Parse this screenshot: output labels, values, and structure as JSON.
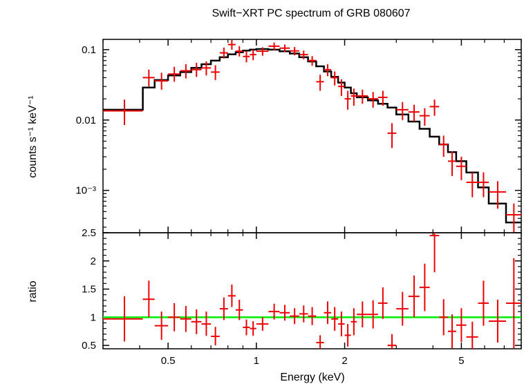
{
  "title": "Swift−XRT PC spectrum of GRB 080607",
  "colors": {
    "data": "#ee0000",
    "model": "#000000",
    "unity": "#00ee00",
    "axes": "#000000"
  },
  "chart_data": [
    {
      "type": "scatter",
      "name": "spectrum",
      "xscale": "log",
      "yscale": "log",
      "xlim": [
        0.3,
        8.0
      ],
      "ylim": [
        0.00025,
        0.14
      ],
      "ylabel": "counts s⁻¹ keV⁻¹",
      "yticks": [
        {
          "value": 0.1,
          "label": "0.1"
        },
        {
          "value": 0.01,
          "label": "0.01"
        },
        {
          "value": 0.001,
          "label": "10⁻³"
        }
      ],
      "model": {
        "x": [
          0.3,
          0.41,
          0.41,
          0.45,
          0.45,
          0.5,
          0.5,
          0.55,
          0.55,
          0.6,
          0.6,
          0.65,
          0.65,
          0.7,
          0.7,
          0.75,
          0.75,
          0.8,
          0.8,
          0.85,
          0.85,
          0.9,
          0.9,
          0.95,
          0.95,
          1.0,
          1.0,
          1.1,
          1.1,
          1.2,
          1.2,
          1.3,
          1.3,
          1.4,
          1.4,
          1.5,
          1.5,
          1.6,
          1.6,
          1.7,
          1.7,
          1.8,
          1.8,
          1.9,
          1.9,
          2.0,
          2.0,
          2.1,
          2.1,
          2.2,
          2.2,
          2.4,
          2.4,
          2.6,
          2.6,
          2.8,
          2.8,
          3.0,
          3.0,
          3.3,
          3.3,
          3.6,
          3.6,
          3.9,
          3.9,
          4.2,
          4.2,
          4.5,
          4.5,
          4.8,
          4.8,
          5.2,
          5.2,
          5.7,
          5.7,
          6.2,
          6.2,
          7.1,
          7.1,
          8.0
        ],
        "y": [
          0.014,
          0.014,
          0.029,
          0.029,
          0.037,
          0.037,
          0.043,
          0.043,
          0.048,
          0.048,
          0.055,
          0.055,
          0.062,
          0.062,
          0.07,
          0.07,
          0.078,
          0.078,
          0.086,
          0.086,
          0.092,
          0.092,
          0.097,
          0.097,
          0.1,
          0.1,
          0.102,
          0.102,
          0.1,
          0.1,
          0.095,
          0.095,
          0.088,
          0.088,
          0.078,
          0.078,
          0.068,
          0.068,
          0.058,
          0.058,
          0.049,
          0.049,
          0.041,
          0.041,
          0.034,
          0.034,
          0.029,
          0.029,
          0.024,
          0.024,
          0.021,
          0.021,
          0.019,
          0.019,
          0.017,
          0.017,
          0.015,
          0.015,
          0.012,
          0.012,
          0.0095,
          0.0095,
          0.0075,
          0.0075,
          0.0058,
          0.0058,
          0.0045,
          0.0045,
          0.0035,
          0.0035,
          0.0026,
          0.0026,
          0.0018,
          0.0018,
          0.0011,
          0.0011,
          0.00065,
          0.00065,
          0.00035,
          0.00035
        ]
      },
      "points": [
        {
          "x": 0.355,
          "xlo": 0.3,
          "xhi": 0.41,
          "y": 0.0135,
          "ylo": 0.0085,
          "yhi": 0.0195
        },
        {
          "x": 0.43,
          "xlo": 0.41,
          "xhi": 0.45,
          "y": 0.04,
          "ylo": 0.03,
          "yhi": 0.052
        },
        {
          "x": 0.475,
          "xlo": 0.45,
          "xhi": 0.5,
          "y": 0.036,
          "ylo": 0.027,
          "yhi": 0.047
        },
        {
          "x": 0.525,
          "xlo": 0.5,
          "xhi": 0.55,
          "y": 0.045,
          "ylo": 0.035,
          "yhi": 0.057
        },
        {
          "x": 0.575,
          "xlo": 0.55,
          "xhi": 0.6,
          "y": 0.05,
          "ylo": 0.039,
          "yhi": 0.062
        },
        {
          "x": 0.625,
          "xlo": 0.6,
          "xhi": 0.65,
          "y": 0.052,
          "ylo": 0.041,
          "yhi": 0.065
        },
        {
          "x": 0.675,
          "xlo": 0.65,
          "xhi": 0.7,
          "y": 0.055,
          "ylo": 0.043,
          "yhi": 0.068
        },
        {
          "x": 0.725,
          "xlo": 0.7,
          "xhi": 0.75,
          "y": 0.048,
          "ylo": 0.037,
          "yhi": 0.06
        },
        {
          "x": 0.775,
          "xlo": 0.75,
          "xhi": 0.8,
          "y": 0.09,
          "ylo": 0.075,
          "yhi": 0.107
        },
        {
          "x": 0.825,
          "xlo": 0.8,
          "xhi": 0.85,
          "y": 0.118,
          "ylo": 0.1,
          "yhi": 0.137
        },
        {
          "x": 0.875,
          "xlo": 0.85,
          "xhi": 0.9,
          "y": 0.095,
          "ylo": 0.08,
          "yhi": 0.112
        },
        {
          "x": 0.925,
          "xlo": 0.9,
          "xhi": 0.95,
          "y": 0.08,
          "ylo": 0.066,
          "yhi": 0.095
        },
        {
          "x": 0.975,
          "xlo": 0.95,
          "xhi": 1.0,
          "y": 0.085,
          "ylo": 0.071,
          "yhi": 0.1
        },
        {
          "x": 1.05,
          "xlo": 1.0,
          "xhi": 1.1,
          "y": 0.095,
          "ylo": 0.082,
          "yhi": 0.108
        },
        {
          "x": 1.15,
          "xlo": 1.1,
          "xhi": 1.2,
          "y": 0.112,
          "ylo": 0.098,
          "yhi": 0.126
        },
        {
          "x": 1.25,
          "xlo": 1.2,
          "xhi": 1.3,
          "y": 0.105,
          "ylo": 0.092,
          "yhi": 0.118
        },
        {
          "x": 1.35,
          "xlo": 1.3,
          "xhi": 1.4,
          "y": 0.096,
          "ylo": 0.083,
          "yhi": 0.109
        },
        {
          "x": 1.45,
          "xlo": 1.4,
          "xhi": 1.5,
          "y": 0.085,
          "ylo": 0.073,
          "yhi": 0.097
        },
        {
          "x": 1.55,
          "xlo": 1.5,
          "xhi": 1.6,
          "y": 0.07,
          "ylo": 0.059,
          "yhi": 0.081
        },
        {
          "x": 1.65,
          "xlo": 1.6,
          "xhi": 1.7,
          "y": 0.035,
          "ylo": 0.026,
          "yhi": 0.044
        },
        {
          "x": 1.75,
          "xlo": 1.7,
          "xhi": 1.8,
          "y": 0.052,
          "ylo": 0.042,
          "yhi": 0.062
        },
        {
          "x": 1.85,
          "xlo": 1.8,
          "xhi": 1.9,
          "y": 0.04,
          "ylo": 0.031,
          "yhi": 0.049
        },
        {
          "x": 1.95,
          "xlo": 1.9,
          "xhi": 2.0,
          "y": 0.03,
          "ylo": 0.022,
          "yhi": 0.038
        },
        {
          "x": 2.05,
          "xlo": 2.0,
          "xhi": 2.1,
          "y": 0.02,
          "ylo": 0.014,
          "yhi": 0.026
        },
        {
          "x": 2.15,
          "xlo": 2.1,
          "xhi": 2.2,
          "y": 0.022,
          "ylo": 0.016,
          "yhi": 0.028
        },
        {
          "x": 2.3,
          "xlo": 2.2,
          "xhi": 2.4,
          "y": 0.022,
          "ylo": 0.017,
          "yhi": 0.027
        },
        {
          "x": 2.5,
          "xlo": 2.4,
          "xhi": 2.6,
          "y": 0.02,
          "ylo": 0.015,
          "yhi": 0.025
        },
        {
          "x": 2.7,
          "xlo": 2.6,
          "xhi": 2.8,
          "y": 0.021,
          "ylo": 0.016,
          "yhi": 0.026
        },
        {
          "x": 2.9,
          "xlo": 2.8,
          "xhi": 3.0,
          "y": 0.0065,
          "ylo": 0.004,
          "yhi": 0.009
        },
        {
          "x": 3.15,
          "xlo": 3.0,
          "xhi": 3.3,
          "y": 0.014,
          "ylo": 0.01,
          "yhi": 0.018
        },
        {
          "x": 3.45,
          "xlo": 3.3,
          "xhi": 3.6,
          "y": 0.013,
          "ylo": 0.0095,
          "yhi": 0.0165
        },
        {
          "x": 3.75,
          "xlo": 3.6,
          "xhi": 3.9,
          "y": 0.0115,
          "ylo": 0.0083,
          "yhi": 0.0147
        },
        {
          "x": 4.05,
          "xlo": 3.9,
          "xhi": 4.2,
          "y": 0.0155,
          "ylo": 0.0115,
          "yhi": 0.0195
        },
        {
          "x": 4.35,
          "xlo": 4.2,
          "xhi": 4.5,
          "y": 0.0045,
          "ylo": 0.003,
          "yhi": 0.006
        },
        {
          "x": 4.65,
          "xlo": 4.5,
          "xhi": 4.8,
          "y": 0.0026,
          "ylo": 0.0016,
          "yhi": 0.0036
        },
        {
          "x": 5.0,
          "xlo": 4.8,
          "xhi": 5.2,
          "y": 0.0022,
          "ylo": 0.0014,
          "yhi": 0.003
        },
        {
          "x": 5.45,
          "xlo": 5.2,
          "xhi": 5.7,
          "y": 0.0013,
          "ylo": 0.0008,
          "yhi": 0.0018
        },
        {
          "x": 5.95,
          "xlo": 5.7,
          "xhi": 6.2,
          "y": 0.0013,
          "ylo": 0.0008,
          "yhi": 0.0018
        },
        {
          "x": 6.65,
          "xlo": 6.2,
          "xhi": 7.1,
          "y": 0.00095,
          "ylo": 0.00055,
          "yhi": 0.00135
        },
        {
          "x": 7.55,
          "xlo": 7.1,
          "xhi": 8.0,
          "y": 0.00045,
          "ylo": 0.00025,
          "yhi": 0.00065
        }
      ]
    },
    {
      "type": "scatter",
      "name": "ratio",
      "xscale": "log",
      "yscale": "linear",
      "xlim": [
        0.3,
        8.0
      ],
      "ylim": [
        0.44,
        2.5
      ],
      "xlabel": "Energy (keV)",
      "ylabel": "ratio",
      "reference_line": 1.0,
      "xticks": [
        {
          "value": 0.5,
          "label": "0.5"
        },
        {
          "value": 1,
          "label": "1"
        },
        {
          "value": 2,
          "label": "2"
        },
        {
          "value": 5,
          "label": "5"
        }
      ],
      "yticks": [
        {
          "value": 0.5,
          "label": "0.5"
        },
        {
          "value": 1,
          "label": "1"
        },
        {
          "value": 1.5,
          "label": "1.5"
        },
        {
          "value": 2,
          "label": "2"
        },
        {
          "value": 2.5,
          "label": "2.5"
        }
      ],
      "points": [
        {
          "x": 0.355,
          "xlo": 0.3,
          "xhi": 0.41,
          "y": 0.97,
          "ylo": 0.57,
          "yhi": 1.37
        },
        {
          "x": 0.43,
          "xlo": 0.41,
          "xhi": 0.45,
          "y": 1.32,
          "ylo": 1.0,
          "yhi": 1.65
        },
        {
          "x": 0.475,
          "xlo": 0.45,
          "xhi": 0.5,
          "y": 0.85,
          "ylo": 0.6,
          "yhi": 1.1
        },
        {
          "x": 0.525,
          "xlo": 0.5,
          "xhi": 0.55,
          "y": 1.0,
          "ylo": 0.75,
          "yhi": 1.25
        },
        {
          "x": 0.575,
          "xlo": 0.55,
          "xhi": 0.6,
          "y": 0.97,
          "ylo": 0.74,
          "yhi": 1.2
        },
        {
          "x": 0.625,
          "xlo": 0.6,
          "xhi": 0.65,
          "y": 0.92,
          "ylo": 0.7,
          "yhi": 1.14
        },
        {
          "x": 0.675,
          "xlo": 0.65,
          "xhi": 0.7,
          "y": 0.88,
          "ylo": 0.67,
          "yhi": 1.1
        },
        {
          "x": 0.725,
          "xlo": 0.7,
          "xhi": 0.75,
          "y": 0.66,
          "ylo": 0.5,
          "yhi": 0.83
        },
        {
          "x": 0.775,
          "xlo": 0.75,
          "xhi": 0.8,
          "y": 1.15,
          "ylo": 0.95,
          "yhi": 1.35
        },
        {
          "x": 0.825,
          "xlo": 0.8,
          "xhi": 0.85,
          "y": 1.38,
          "ylo": 1.18,
          "yhi": 1.58
        },
        {
          "x": 0.875,
          "xlo": 0.85,
          "xhi": 0.9,
          "y": 1.13,
          "ylo": 0.95,
          "yhi": 1.31
        },
        {
          "x": 0.925,
          "xlo": 0.9,
          "xhi": 0.95,
          "y": 0.82,
          "ylo": 0.68,
          "yhi": 0.96
        },
        {
          "x": 0.975,
          "xlo": 0.95,
          "xhi": 1.0,
          "y": 0.8,
          "ylo": 0.67,
          "yhi": 0.93
        },
        {
          "x": 1.05,
          "xlo": 1.0,
          "xhi": 1.1,
          "y": 0.88,
          "ylo": 0.76,
          "yhi": 1.0
        },
        {
          "x": 1.15,
          "xlo": 1.1,
          "xhi": 1.2,
          "y": 1.1,
          "ylo": 0.96,
          "yhi": 1.24
        },
        {
          "x": 1.25,
          "xlo": 1.2,
          "xhi": 1.3,
          "y": 1.08,
          "ylo": 0.94,
          "yhi": 1.22
        },
        {
          "x": 1.35,
          "xlo": 1.3,
          "xhi": 1.4,
          "y": 1.02,
          "ylo": 0.88,
          "yhi": 1.16
        },
        {
          "x": 1.45,
          "xlo": 1.4,
          "xhi": 1.5,
          "y": 1.06,
          "ylo": 0.91,
          "yhi": 1.21
        },
        {
          "x": 1.55,
          "xlo": 1.5,
          "xhi": 1.6,
          "y": 1.02,
          "ylo": 0.86,
          "yhi": 1.18
        },
        {
          "x": 1.65,
          "xlo": 1.6,
          "xhi": 1.7,
          "y": 0.55,
          "ylo": 0.42,
          "yhi": 0.68
        },
        {
          "x": 1.75,
          "xlo": 1.7,
          "xhi": 1.8,
          "y": 1.08,
          "ylo": 0.88,
          "yhi": 1.28
        },
        {
          "x": 1.85,
          "xlo": 1.8,
          "xhi": 1.9,
          "y": 0.97,
          "ylo": 0.76,
          "yhi": 1.18
        },
        {
          "x": 1.95,
          "xlo": 1.9,
          "xhi": 2.0,
          "y": 0.88,
          "ylo": 0.66,
          "yhi": 1.1
        },
        {
          "x": 2.05,
          "xlo": 2.0,
          "xhi": 2.1,
          "y": 0.68,
          "ylo": 0.48,
          "yhi": 0.88
        },
        {
          "x": 2.15,
          "xlo": 2.1,
          "xhi": 2.2,
          "y": 0.92,
          "ylo": 0.68,
          "yhi": 1.16
        },
        {
          "x": 2.3,
          "xlo": 2.2,
          "xhi": 2.4,
          "y": 1.05,
          "ylo": 0.82,
          "yhi": 1.28
        },
        {
          "x": 2.5,
          "xlo": 2.4,
          "xhi": 2.6,
          "y": 1.05,
          "ylo": 0.8,
          "yhi": 1.3
        },
        {
          "x": 2.7,
          "xlo": 2.6,
          "xhi": 2.8,
          "y": 1.25,
          "ylo": 0.97,
          "yhi": 1.53
        },
        {
          "x": 2.9,
          "xlo": 2.8,
          "xhi": 3.0,
          "y": 0.5,
          "ylo": 0.3,
          "yhi": 0.7
        },
        {
          "x": 3.15,
          "xlo": 3.0,
          "xhi": 3.3,
          "y": 1.15,
          "ylo": 0.85,
          "yhi": 1.45
        },
        {
          "x": 3.45,
          "xlo": 3.3,
          "xhi": 3.6,
          "y": 1.37,
          "ylo": 1.0,
          "yhi": 1.74
        },
        {
          "x": 3.75,
          "xlo": 3.6,
          "xhi": 3.9,
          "y": 1.53,
          "ylo": 1.11,
          "yhi": 1.95
        },
        {
          "x": 4.05,
          "xlo": 3.9,
          "xhi": 4.2,
          "y": 2.45,
          "ylo": 1.8,
          "yhi": 3.1
        },
        {
          "x": 4.35,
          "xlo": 4.2,
          "xhi": 4.5,
          "y": 1.0,
          "ylo": 0.68,
          "yhi": 1.32
        },
        {
          "x": 4.65,
          "xlo": 4.5,
          "xhi": 4.8,
          "y": 0.75,
          "ylo": 0.45,
          "yhi": 1.05
        },
        {
          "x": 5.0,
          "xlo": 4.8,
          "xhi": 5.2,
          "y": 0.86,
          "ylo": 0.56,
          "yhi": 1.16
        },
        {
          "x": 5.45,
          "xlo": 5.2,
          "xhi": 5.7,
          "y": 0.65,
          "ylo": 0.38,
          "yhi": 0.92
        },
        {
          "x": 5.95,
          "xlo": 5.7,
          "xhi": 6.2,
          "y": 1.25,
          "ylo": 0.85,
          "yhi": 1.65
        },
        {
          "x": 6.65,
          "xlo": 6.2,
          "xhi": 7.1,
          "y": 0.93,
          "ylo": 0.55,
          "yhi": 1.31
        },
        {
          "x": 7.55,
          "xlo": 7.1,
          "xhi": 8.0,
          "y": 1.25,
          "ylo": 0.45,
          "yhi": 2.05
        }
      ]
    }
  ]
}
